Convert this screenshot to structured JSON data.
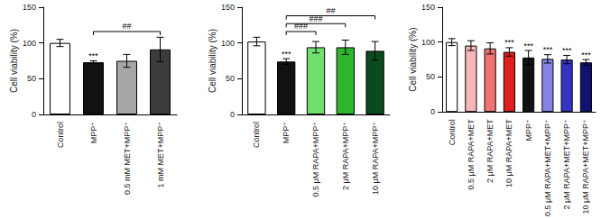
{
  "chart_data": [
    {
      "type": "bar",
      "y_label": "Cell viability (%)",
      "categories": [
        "Control",
        "MPP⁺",
        "0.5 mM MET+MPP⁺",
        "1 mM MET+MPP⁺"
      ],
      "values": [
        100,
        73,
        75,
        91
      ],
      "errors": [
        5,
        2,
        9,
        17
      ],
      "colors": [
        "#ffffff",
        "#111111",
        "#a6a6a6",
        "#3c3c3c"
      ],
      "ylim": [
        0,
        150
      ],
      "yticks": [
        0,
        50,
        100,
        150
      ],
      "grid": false,
      "stars": [
        {
          "category": "MPP⁺",
          "text": "***"
        }
      ],
      "brackets": [
        {
          "from": "MPP⁺",
          "to": "1 mM MET+MPP⁺",
          "text": "##"
        }
      ]
    },
    {
      "type": "bar",
      "y_label": "Cell viability (%)",
      "categories": [
        "Control",
        "MPP⁺",
        "0.5 μM RAPA+MPP⁺",
        "2 μM RAPA+MPP⁺",
        "10 μM RAPA+MPP⁺"
      ],
      "values": [
        102,
        74,
        94,
        94,
        89
      ],
      "errors": [
        6,
        4,
        8,
        10,
        13
      ],
      "colors": [
        "#ffffff",
        "#111111",
        "#6fe06f",
        "#2db52d",
        "#0b4a1c"
      ],
      "ylim": [
        0,
        150
      ],
      "yticks": [
        0,
        50,
        100,
        150
      ],
      "grid": false,
      "stars": [
        {
          "category": "MPP⁺",
          "text": "***"
        }
      ],
      "brackets": [
        {
          "from": "MPP⁺",
          "to": "0.5 μM RAPA+MPP⁺",
          "text": "###"
        },
        {
          "from": "MPP⁺",
          "to": "2 μM RAPA+MPP⁺",
          "text": "###"
        },
        {
          "from": "MPP⁺",
          "to": "10 μM RAPA+MPP⁺",
          "text": "##"
        }
      ]
    },
    {
      "type": "bar",
      "y_label": "Cell viability (%)",
      "categories": [
        "Control",
        "0.5 μM RAPA+MET",
        "2 μM RAPA+MET",
        "10 μM RAPA+MET",
        "MPP⁺",
        "0.5 μM RAPA+MET+MPP⁺",
        "2 μM RAPA+MET+MPP⁺",
        "10 μM RAPA+MET+MPP⁺"
      ],
      "values": [
        100,
        95,
        91,
        86,
        78,
        76,
        75,
        71
      ],
      "errors": [
        5,
        7,
        8,
        6,
        10,
        6,
        6,
        4
      ],
      "colors": [
        "#ffffff",
        "#f6b8b8",
        "#f07272",
        "#e01e1e",
        "#111111",
        "#8484e6",
        "#3333c4",
        "#111170"
      ],
      "ylim": [
        0,
        150
      ],
      "yticks": [
        0,
        50,
        100,
        150
      ],
      "grid": false,
      "stars": [
        {
          "category": "10 μM RAPA+MET",
          "text": "***"
        },
        {
          "category": "MPP⁺",
          "text": "***"
        },
        {
          "category": "0.5 μM RAPA+MET+MPP⁺",
          "text": "***"
        },
        {
          "category": "2 μM RAPA+MET+MPP⁺",
          "text": "***"
        },
        {
          "category": "10 μM RAPA+MET+MPP⁺",
          "text": "***"
        }
      ],
      "brackets": []
    }
  ]
}
